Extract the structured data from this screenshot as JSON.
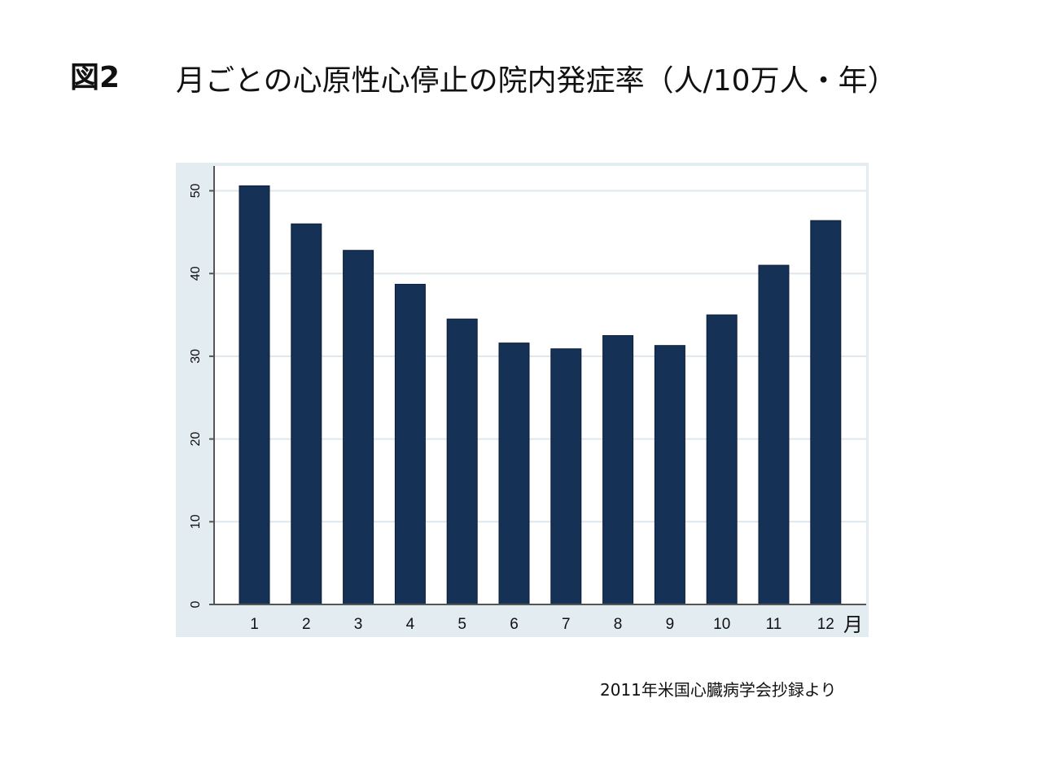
{
  "figure": {
    "label": "図2",
    "title": "月ごとの心原性心停止の院内発症率（人/10万人・年）",
    "source": "2011年米国心臓病学会抄録より"
  },
  "chart_data": {
    "type": "bar",
    "categories": [
      "1",
      "2",
      "3",
      "4",
      "5",
      "6",
      "7",
      "8",
      "9",
      "10",
      "11",
      "12"
    ],
    "values": [
      50.6,
      46.0,
      42.8,
      38.7,
      34.5,
      31.6,
      30.9,
      32.5,
      31.3,
      35.0,
      41.0,
      46.4
    ],
    "xlabel": "月",
    "ylabel": "",
    "ylim": [
      0,
      53
    ],
    "yticks": [
      0,
      10,
      20,
      30,
      40,
      50
    ],
    "grid": true,
    "colors": {
      "bar": "#163156",
      "bar_edge": "#0b1d38",
      "background": "#e3ecf1",
      "plot_area": "#ffffff",
      "grid": "#dde7ee",
      "axis": "#555555",
      "text": "#111111"
    }
  }
}
